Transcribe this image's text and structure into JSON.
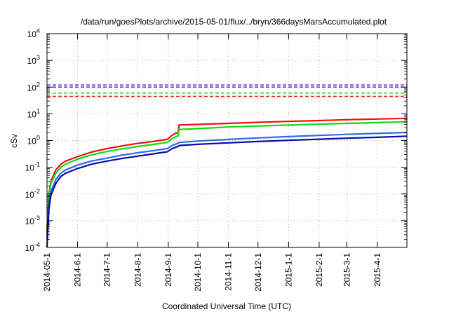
{
  "chart_data": {
    "type": "line",
    "title": "/data/run/goesPlots/archive/2015-05-01/flux/../bryn/366daysMarsAccumulated.plot",
    "xlabel": "Coordinated Universal Time (UTC)",
    "ylabel": "cSv",
    "yscale": "log",
    "ylim": [
      0.0001,
      10000
    ],
    "xlim": [
      "2014-05-01",
      "2015-05-01"
    ],
    "grid": true,
    "x_ticks": [
      "2014-05-1",
      "2014-6-1",
      "2014-7-1",
      "2014-8-1",
      "2014-9-1",
      "2014-10-1",
      "2014-11-1",
      "2014-12-1",
      "2015-1-1",
      "2015-2-1",
      "2015-3-1",
      "2015-4-1"
    ],
    "y_ticks": [
      {
        "base": "10",
        "exp": "-4"
      },
      {
        "base": "10",
        "exp": "-3"
      },
      {
        "base": "10",
        "exp": "-2"
      },
      {
        "base": "10",
        "exp": "-1"
      },
      {
        "base": "10",
        "exp": "0"
      },
      {
        "base": "10",
        "exp": "1"
      },
      {
        "base": "10",
        "exp": "2"
      },
      {
        "base": "10",
        "exp": "3"
      },
      {
        "base": "10",
        "exp": "4"
      }
    ],
    "reference_lines": [
      {
        "y": 120,
        "color": "#8800cc"
      },
      {
        "y": 100,
        "color": "#1a3ad6"
      },
      {
        "y": 60,
        "color": "#11dd11"
      },
      {
        "y": 45,
        "color": "#ee1111"
      }
    ],
    "series": [
      {
        "color": "#ee1111",
        "x": [
          "2014-05-01",
          "2014-05-03",
          "2014-05-05",
          "2014-05-10",
          "2014-05-15",
          "2014-05-20",
          "2014-06-01",
          "2014-06-15",
          "2014-07-01",
          "2014-07-15",
          "2014-08-01",
          "2014-08-15",
          "2014-08-31",
          "2014-09-05",
          "2014-09-09",
          "2014-09-11",
          "2014-09-12",
          "2014-10-01",
          "2014-11-01",
          "2014-12-01",
          "2015-01-01",
          "2015-02-01",
          "2015-03-01",
          "2015-04-01",
          "2015-05-01"
        ],
        "y": [
          0.0004,
          0.01,
          0.03,
          0.08,
          0.13,
          0.17,
          0.25,
          0.37,
          0.5,
          0.62,
          0.78,
          0.9,
          1.1,
          1.6,
          1.9,
          2.0,
          3.8,
          4.0,
          4.4,
          4.8,
          5.2,
          5.6,
          6.0,
          6.4,
          6.8
        ]
      },
      {
        "color": "#11dd11",
        "x": [
          "2014-05-01",
          "2014-05-03",
          "2014-05-05",
          "2014-05-10",
          "2014-05-15",
          "2014-05-20",
          "2014-06-01",
          "2014-06-15",
          "2014-07-01",
          "2014-07-15",
          "2014-08-01",
          "2014-08-15",
          "2014-08-31",
          "2014-09-05",
          "2014-09-09",
          "2014-09-11",
          "2014-09-12",
          "2014-10-01",
          "2014-11-01",
          "2014-12-01",
          "2015-01-01",
          "2015-02-01",
          "2015-03-01",
          "2015-04-01",
          "2015-05-01"
        ],
        "y": [
          0.0003,
          0.008,
          0.025,
          0.06,
          0.1,
          0.13,
          0.2,
          0.29,
          0.39,
          0.48,
          0.6,
          0.7,
          0.85,
          1.2,
          1.4,
          1.5,
          2.6,
          2.8,
          3.2,
          3.5,
          3.8,
          4.1,
          4.4,
          4.7,
          5.0
        ]
      },
      {
        "color": "#2a6de0",
        "x": [
          "2014-05-01",
          "2014-05-03",
          "2014-05-05",
          "2014-05-10",
          "2014-05-15",
          "2014-05-20",
          "2014-06-01",
          "2014-06-15",
          "2014-07-01",
          "2014-07-15",
          "2014-08-01",
          "2014-08-15",
          "2014-08-31",
          "2014-09-05",
          "2014-09-09",
          "2014-09-11",
          "2014-09-12",
          "2014-10-01",
          "2014-11-01",
          "2014-12-01",
          "2015-01-01",
          "2015-02-01",
          "2015-03-01",
          "2015-04-01",
          "2015-05-01"
        ],
        "y": [
          0.0002,
          0.004,
          0.012,
          0.035,
          0.06,
          0.08,
          0.12,
          0.17,
          0.22,
          0.28,
          0.35,
          0.41,
          0.5,
          0.65,
          0.75,
          0.8,
          0.85,
          0.95,
          1.1,
          1.25,
          1.4,
          1.55,
          1.7,
          1.85,
          2.0
        ]
      },
      {
        "color": "#0a0aa8",
        "x": [
          "2014-05-01",
          "2014-05-03",
          "2014-05-05",
          "2014-05-10",
          "2014-05-15",
          "2014-05-20",
          "2014-06-01",
          "2014-06-15",
          "2014-07-01",
          "2014-07-15",
          "2014-08-01",
          "2014-08-15",
          "2014-08-31",
          "2014-09-05",
          "2014-09-09",
          "2014-09-11",
          "2014-09-12",
          "2014-10-01",
          "2014-11-01",
          "2014-12-01",
          "2015-01-01",
          "2015-02-01",
          "2015-03-01",
          "2015-04-01",
          "2015-05-01"
        ],
        "y": [
          0.0001,
          0.003,
          0.009,
          0.025,
          0.045,
          0.06,
          0.09,
          0.13,
          0.17,
          0.21,
          0.26,
          0.31,
          0.38,
          0.5,
          0.57,
          0.6,
          0.65,
          0.72,
          0.82,
          0.92,
          1.02,
          1.12,
          1.22,
          1.32,
          1.45
        ]
      }
    ]
  }
}
